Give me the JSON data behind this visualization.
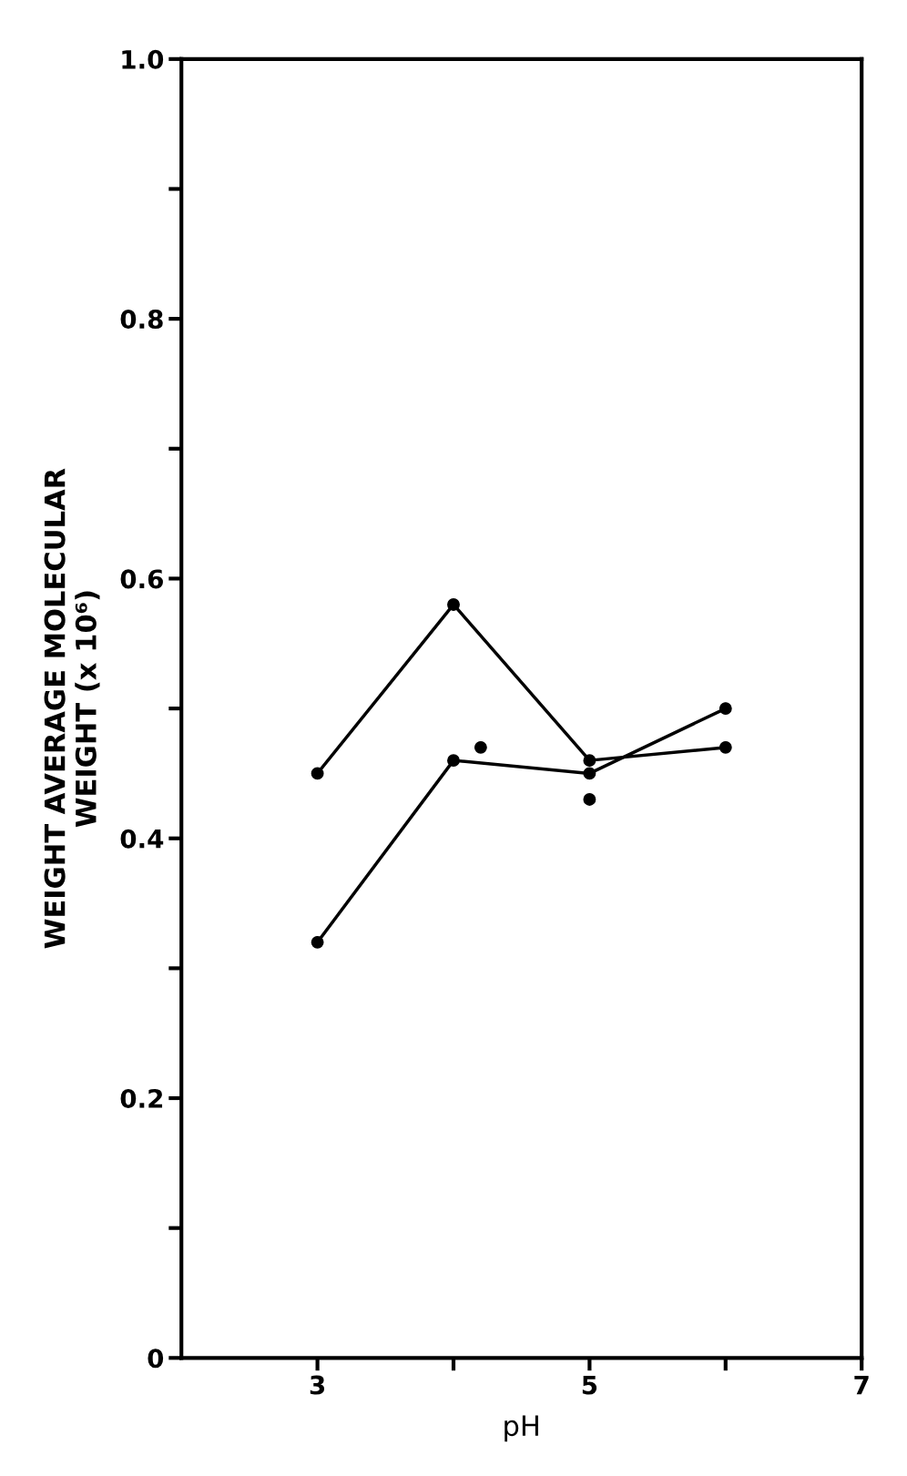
{
  "chart_data": {
    "type": "line",
    "xlabel": "pH",
    "ylabel": "WEIGHT AVERAGE MOLECULAR\nWEIGHT (x 10⁶)",
    "xlim": [
      2,
      7
    ],
    "xticks": [
      3,
      {
        "value": 4,
        "label": null
      },
      5,
      {
        "value": 6,
        "label": null
      },
      7
    ],
    "ylim": [
      0,
      1.0
    ],
    "yticks": [
      0,
      {
        "value": 0.1,
        "label": null
      },
      0.2,
      {
        "value": 0.3,
        "label": null
      },
      0.4,
      {
        "value": 0.5,
        "label": null
      },
      0.6,
      {
        "value": 0.7,
        "label": null
      },
      0.8,
      {
        "value": 0.9,
        "label": null
      },
      {
        "value": 1,
        "label": "1.0"
      }
    ],
    "marker": "circle",
    "grid": false,
    "series": [
      {
        "color": "#000000",
        "x": [
          3,
          4,
          5,
          6
        ],
        "values": [
          0.45,
          0.58,
          0.46,
          0.47
        ]
      },
      {
        "color": "#000000",
        "x": [
          3,
          4,
          5,
          6
        ],
        "values": [
          0.32,
          0.46,
          0.45,
          0.5
        ]
      },
      {
        "type": "scatter",
        "color": "#000000",
        "x": [
          4.2
        ],
        "values": [
          0.47
        ]
      },
      {
        "type": "scatter",
        "color": "#000000",
        "x": [
          5
        ],
        "values": [
          0.43
        ]
      }
    ]
  }
}
